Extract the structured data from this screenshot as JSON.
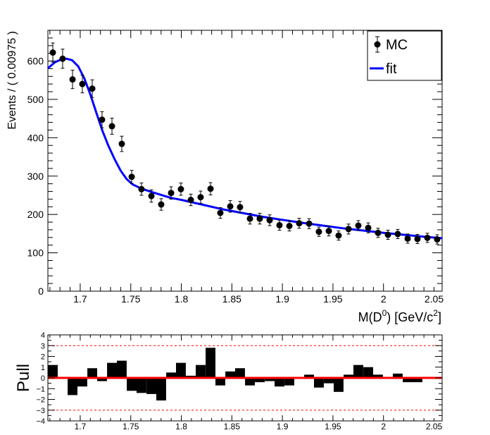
{
  "chart_data": [
    {
      "type": "scatter",
      "panel": "main",
      "xlabel": "M(D",
      "xlabel_sup": "0",
      "xlabel_mid": ") [GeV/c",
      "xlabel_sup2": "2",
      "xlabel_end": "]",
      "ylabel": "Events / ( 0.00975 )",
      "xlim": [
        1.668,
        2.058
      ],
      "ylim": [
        0,
        680
      ],
      "xticks": [
        1.7,
        1.75,
        1.8,
        1.85,
        1.9,
        1.95,
        2,
        2.05
      ],
      "xtick_labels": [
        "1.7",
        "1.75",
        "1.8",
        "1.85",
        "1.9",
        "1.95",
        "2",
        "2.05"
      ],
      "yticks": [
        0,
        100,
        200,
        300,
        400,
        500,
        600
      ],
      "ytick_labels": [
        "0",
        "100",
        "200",
        "300",
        "400",
        "500",
        "600"
      ],
      "legend": {
        "placement": "top-right",
        "entries": [
          "MC",
          "fit"
        ]
      },
      "series": [
        {
          "name": "MC",
          "kind": "points-with-errors",
          "color": "#000000",
          "x": [
            1.6729,
            1.6826,
            1.6924,
            1.7021,
            1.7119,
            1.7216,
            1.7314,
            1.7411,
            1.7509,
            1.7606,
            1.7704,
            1.7801,
            1.7899,
            1.7996,
            1.8094,
            1.8191,
            1.8289,
            1.8386,
            1.8484,
            1.8581,
            1.8679,
            1.8776,
            1.8874,
            1.8971,
            1.9069,
            1.9166,
            1.9264,
            1.9361,
            1.9459,
            1.9556,
            1.9654,
            1.9751,
            1.9849,
            1.9946,
            2.0044,
            2.0141,
            2.0239,
            2.0336,
            2.0434,
            2.0531
          ],
          "y": [
            622,
            606,
            552,
            540,
            528,
            447,
            430,
            384,
            298,
            266,
            248,
            226,
            256,
            266,
            238,
            245,
            267,
            204,
            221,
            219,
            189,
            189,
            185,
            172,
            170,
            177,
            176,
            155,
            157,
            145,
            162,
            171,
            165,
            152,
            147,
            149,
            137,
            136,
            139,
            135
          ],
          "err": [
            25,
            25,
            24,
            23,
            23,
            21,
            21,
            20,
            17,
            16,
            16,
            15,
            16,
            16,
            15,
            16,
            16,
            14,
            15,
            15,
            14,
            14,
            14,
            13,
            13,
            13,
            13,
            12,
            13,
            12,
            13,
            13,
            13,
            12,
            12,
            12,
            12,
            12,
            12,
            12
          ]
        },
        {
          "name": "fit",
          "kind": "curve",
          "color": "#0000ff",
          "x": [
            1.668,
            1.675,
            1.682,
            1.6865,
            1.692,
            1.698,
            1.704,
            1.71,
            1.716,
            1.722,
            1.728,
            1.734,
            1.74,
            1.746,
            1.752,
            1.76,
            1.77,
            1.78,
            1.79,
            1.8,
            1.82,
            1.84,
            1.86,
            1.88,
            1.9,
            1.92,
            1.94,
            1.96,
            1.98,
            2.0,
            2.02,
            2.04,
            2.058
          ],
          "y": [
            581,
            597,
            605,
            606,
            602,
            586,
            555,
            513,
            465,
            418,
            378,
            344,
            314,
            292,
            278,
            268,
            259,
            251,
            243,
            238,
            226,
            214,
            204,
            194,
            186,
            178,
            171,
            164,
            158,
            152,
            147,
            142,
            138
          ]
        }
      ]
    },
    {
      "type": "bar",
      "panel": "pull",
      "ylabel": "Pull",
      "xlim": [
        1.668,
        2.058
      ],
      "ylim": [
        -4,
        4
      ],
      "xticks": [
        1.7,
        1.75,
        1.8,
        1.85,
        1.9,
        1.95,
        2,
        2.05
      ],
      "xtick_labels": [
        "1.7",
        "1.75",
        "1.8",
        "1.85",
        "1.9",
        "1.95",
        "2",
        "2.05"
      ],
      "yticks": [
        -4,
        -3,
        -2,
        -1,
        0,
        1,
        2,
        3,
        4
      ],
      "ytick_labels": [
        "−4",
        "−3",
        "−2",
        "−1",
        "0",
        "1",
        "2",
        "3",
        "4"
      ],
      "reference_lines": [
        {
          "y": 3,
          "style": "dashed",
          "color": "#ff0000"
        },
        {
          "y": -3,
          "style": "dashed",
          "color": "#ff0000"
        },
        {
          "y": 0,
          "style": "solid",
          "color": "#ff0000"
        }
      ],
      "x": [
        1.6729,
        1.6826,
        1.6924,
        1.7021,
        1.7119,
        1.7216,
        1.7314,
        1.7411,
        1.7509,
        1.7606,
        1.7704,
        1.7801,
        1.7899,
        1.7996,
        1.8094,
        1.8191,
        1.8289,
        1.8386,
        1.8484,
        1.8581,
        1.8679,
        1.8776,
        1.8874,
        1.8971,
        1.9069,
        1.9166,
        1.9264,
        1.9361,
        1.9459,
        1.9556,
        1.9654,
        1.9751,
        1.9849,
        1.9946,
        2.0044,
        2.0141,
        2.0239,
        2.0336,
        2.0434,
        2.0531
      ],
      "values": [
        1.2,
        0,
        -1.6,
        -0.8,
        0.9,
        -0.3,
        1.4,
        1.6,
        -1.2,
        -1.4,
        -1.5,
        -2.1,
        0.5,
        1.4,
        0.2,
        1.2,
        2.8,
        -0.7,
        0.6,
        0.9,
        -0.7,
        -0.4,
        -0.3,
        -0.8,
        -0.7,
        0,
        0.3,
        -0.9,
        -0.5,
        -1.3,
        0.3,
        1.2,
        1.0,
        0.3,
        0,
        0.4,
        -0.4,
        -0.4,
        0.1,
        0
      ]
    }
  ]
}
